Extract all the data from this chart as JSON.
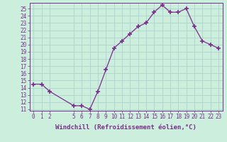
{
  "x": [
    0,
    1,
    2,
    5,
    6,
    7,
    8,
    9,
    10,
    11,
    12,
    13,
    14,
    15,
    16,
    17,
    18,
    19,
    20,
    21,
    22,
    23
  ],
  "y": [
    14.5,
    14.5,
    13.5,
    11.5,
    11.5,
    11.0,
    13.5,
    16.5,
    19.5,
    20.5,
    21.5,
    22.5,
    23.0,
    24.5,
    25.5,
    24.5,
    24.5,
    25.0,
    22.5,
    20.5,
    20.0,
    19.5
  ],
  "line_color": "#7b2d8b",
  "marker": "+",
  "markersize": 4,
  "markeredgewidth": 1.2,
  "bg_color": "#cceedd",
  "grid_color": "#aacccc",
  "xlabel": "Windchill (Refroidissement éolien,°C)",
  "xlabel_fontsize": 6.5,
  "tick_fontsize": 5.5,
  "ylim": [
    10.8,
    25.8
  ],
  "xlim": [
    -0.5,
    23.5
  ],
  "yticks": [
    11,
    12,
    13,
    14,
    15,
    16,
    17,
    18,
    19,
    20,
    21,
    22,
    23,
    24,
    25
  ],
  "xticks": [
    0,
    1,
    2,
    5,
    6,
    7,
    8,
    9,
    10,
    11,
    12,
    13,
    14,
    15,
    16,
    17,
    18,
    19,
    20,
    21,
    22,
    23
  ]
}
